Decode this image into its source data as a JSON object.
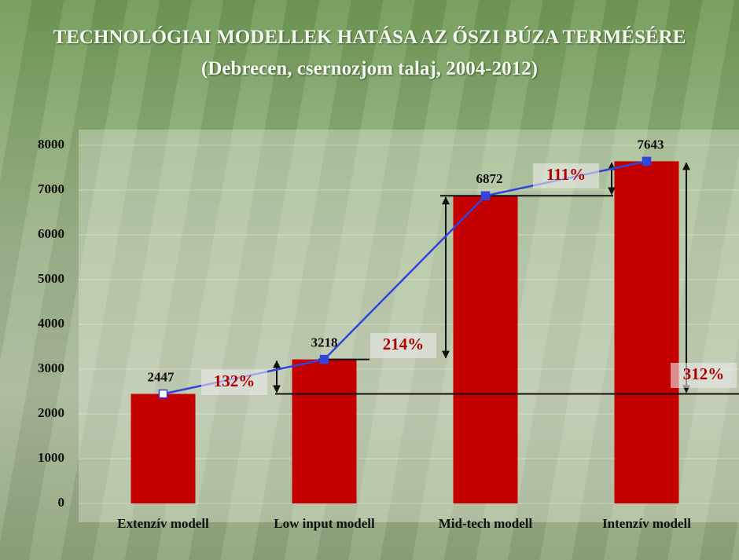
{
  "chart_data": {
    "type": "bar",
    "title": "TECHNOLÓGIAI  MODELLEK HATÁSA  AZ ŐSZI BÚZA TERMÉSÉRE",
    "subtitle": "(Debrecen, csernozjom  talaj, 2004-2012)",
    "categories": [
      "Extenzív modell",
      "Low input modell",
      "Mid-tech modell",
      "Intenzív modell"
    ],
    "values": [
      2447,
      3218,
      6872,
      7643
    ],
    "color": "#c40000",
    "line_color": "#3344dd",
    "ylim": [
      0,
      8000
    ],
    "yticks": [
      0,
      1000,
      2000,
      3000,
      4000,
      5000,
      6000,
      7000,
      8000
    ],
    "grid": true,
    "annotations": [
      "132%",
      "214%",
      "111%",
      "312%"
    ]
  }
}
